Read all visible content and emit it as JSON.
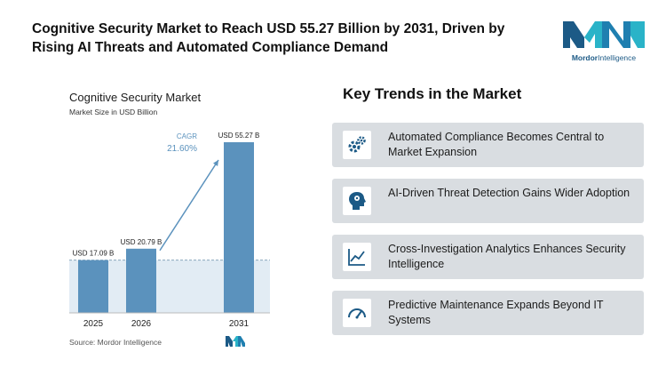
{
  "headline": "Cognitive Security Market to Reach USD 55.27 Billion by 2031, Driven by Rising AI Threats and Automated Compliance Demand",
  "brand": {
    "name_bold": "Mordor",
    "name_rest": "Intelligence",
    "color": "#1c5a86",
    "accent": "#2ab3c8"
  },
  "chart": {
    "title": "Cognitive Security Market",
    "subtitle": "Market Size in USD Billion",
    "source": "Source: Mordor Intelligence",
    "cagr_label": "CAGR",
    "cagr_value": "21.60%"
  },
  "chart_data": {
    "type": "bar",
    "categories": [
      "2025",
      "2026",
      "2031"
    ],
    "values": [
      17.09,
      20.79,
      55.27
    ],
    "value_labels": [
      "USD 17.09 B",
      "USD 20.79 B",
      "USD 55.27 B"
    ],
    "ylim": [
      0,
      55.27
    ],
    "bar_color": "#5b92bd"
  },
  "trends": {
    "title": "Key Trends in the Market",
    "items": [
      {
        "label": "Automated Compliance Becomes Central to Market Expansion",
        "icon": "gears-icon"
      },
      {
        "label": "AI-Driven Threat Detection Gains Wider Adoption",
        "icon": "ai-head-icon"
      },
      {
        "label": "Cross-Investigation Analytics Enhances Security Intelligence",
        "icon": "line-chart-icon"
      },
      {
        "label": "Predictive Maintenance Expands Beyond IT Systems",
        "icon": "gauge-icon"
      }
    ]
  }
}
